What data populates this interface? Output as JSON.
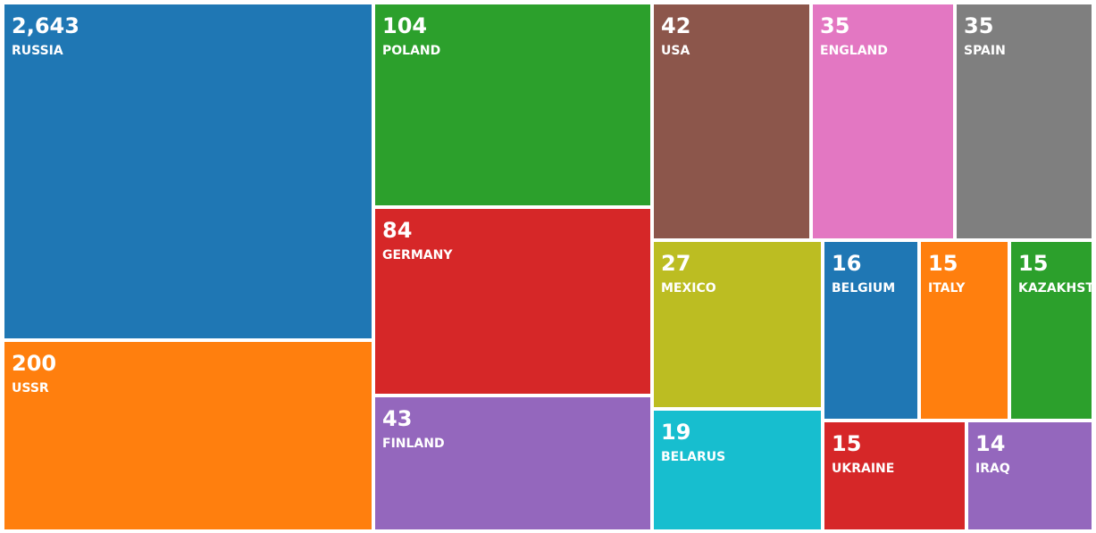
{
  "chart_data": {
    "type": "treemap",
    "categories": [
      "RUSSIA",
      "USSR",
      "POLAND",
      "GERMANY",
      "FINLAND",
      "USA",
      "ENGLAND",
      "SPAIN",
      "MEXICO",
      "BELARUS",
      "BELGIUM",
      "ITALY",
      "KAZAKHSTAN",
      "UKRAINE",
      "IRAQ"
    ],
    "values": [
      2643,
      200,
      104,
      84,
      43,
      42,
      35,
      35,
      27,
      19,
      16,
      15,
      15,
      15,
      14
    ],
    "value_labels": [
      "2,643",
      "200",
      "104",
      "84",
      "43",
      "42",
      "35",
      "35",
      "27",
      "19",
      "16",
      "15",
      "15",
      "15",
      "14"
    ],
    "colors": [
      "#1f77b4",
      "#ff7f0e",
      "#2ca02c",
      "#d62728",
      "#9467bd",
      "#8c564b",
      "#e377c2",
      "#7f7f7f",
      "#bcbd22",
      "#17becf",
      "#1f77b4",
      "#ff7f0e",
      "#2ca02c",
      "#d62728",
      "#9467bd"
    ]
  }
}
